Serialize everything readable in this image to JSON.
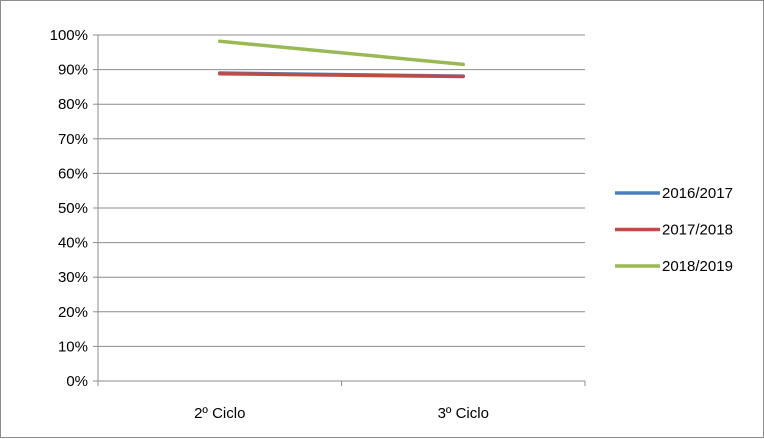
{
  "chart_data": {
    "type": "line",
    "title": "",
    "xlabel": "",
    "ylabel": "",
    "categories": [
      "2º Ciclo",
      "3º Ciclo"
    ],
    "ylim": [
      0,
      100
    ],
    "yticks": [
      0,
      10,
      20,
      30,
      40,
      50,
      60,
      70,
      80,
      90,
      100
    ],
    "ytick_labels": [
      "0%",
      "10%",
      "20%",
      "30%",
      "40%",
      "50%",
      "60%",
      "70%",
      "80%",
      "90%",
      "100%"
    ],
    "grid": true,
    "legend_position": "right",
    "series": [
      {
        "name": "2016/2017",
        "values": [
          89.0,
          88.1
        ],
        "color": "#4a7ebb"
      },
      {
        "name": "2017/2018",
        "values": [
          88.8,
          88.0
        ],
        "color": "#be4b48"
      },
      {
        "name": "2018/2019",
        "values": [
          98.2,
          91.5
        ],
        "color": "#98b954"
      }
    ]
  }
}
